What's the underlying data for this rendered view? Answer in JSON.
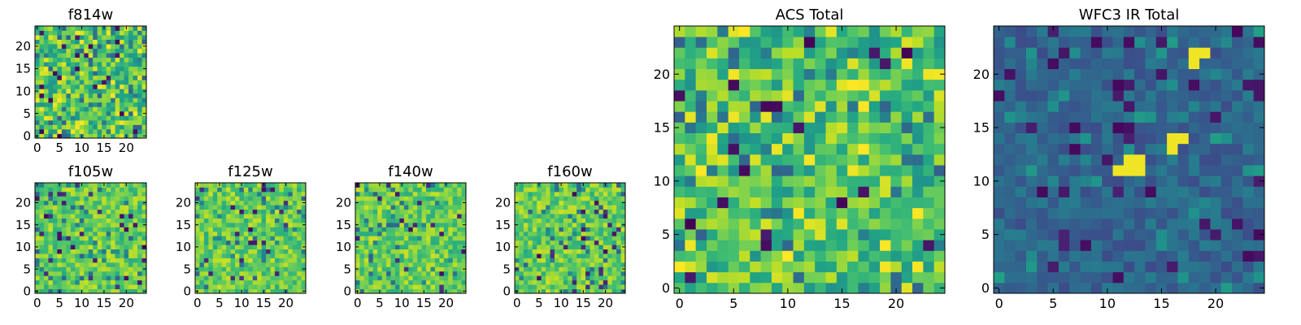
{
  "figure": {
    "description_panels": [
      "f814w",
      "f105w",
      "f125w",
      "f140w",
      "f160w",
      "ACS Total",
      "WFC3 IR Total"
    ]
  },
  "chart_data": [
    {
      "type": "heatmap",
      "title": "f814w",
      "xlabel": "",
      "ylabel": "",
      "xlim": [
        0,
        25
      ],
      "ylim": [
        0,
        25
      ],
      "xticks": [
        0,
        5,
        10,
        15,
        20
      ],
      "yticks": [
        0,
        5,
        10,
        15,
        20
      ],
      "grid": false,
      "colormap": "viridis",
      "size": 25,
      "seed": 814,
      "style": "acs"
    },
    {
      "type": "heatmap",
      "title": "f105w",
      "xlabel": "",
      "ylabel": "",
      "xlim": [
        0,
        25
      ],
      "ylim": [
        0,
        25
      ],
      "xticks": [
        0,
        5,
        10,
        15,
        20
      ],
      "yticks": [
        0,
        5,
        10,
        15,
        20
      ],
      "grid": false,
      "colormap": "viridis",
      "size": 25,
      "seed": 105,
      "style": "ir"
    },
    {
      "type": "heatmap",
      "title": "f125w",
      "xlabel": "",
      "ylabel": "",
      "xlim": [
        0,
        25
      ],
      "ylim": [
        0,
        25
      ],
      "xticks": [
        0,
        5,
        10,
        15,
        20
      ],
      "yticks": [
        0,
        5,
        10,
        15,
        20
      ],
      "grid": false,
      "colormap": "viridis",
      "size": 25,
      "seed": 125,
      "style": "ir"
    },
    {
      "type": "heatmap",
      "title": "f140w",
      "xlabel": "",
      "ylabel": "",
      "xlim": [
        0,
        25
      ],
      "ylim": [
        0,
        25
      ],
      "xticks": [
        0,
        5,
        10,
        15,
        20
      ],
      "yticks": [
        0,
        5,
        10,
        15,
        20
      ],
      "grid": false,
      "colormap": "viridis",
      "size": 25,
      "seed": 140,
      "style": "ir"
    },
    {
      "type": "heatmap",
      "title": "f160w",
      "xlabel": "",
      "ylabel": "",
      "xlim": [
        0,
        25
      ],
      "ylim": [
        0,
        25
      ],
      "xticks": [
        0,
        5,
        10,
        15,
        20
      ],
      "yticks": [
        0,
        5,
        10,
        15,
        20
      ],
      "grid": false,
      "colormap": "viridis",
      "size": 25,
      "seed": 160,
      "style": "ir"
    },
    {
      "type": "heatmap",
      "title": "ACS Total",
      "xlabel": "",
      "ylabel": "",
      "xlim": [
        0,
        25
      ],
      "ylim": [
        0,
        25
      ],
      "xticks": [
        0,
        5,
        10,
        15,
        20
      ],
      "yticks": [
        0,
        5,
        10,
        15,
        20
      ],
      "grid": false,
      "colormap": "viridis",
      "size": 25,
      "seed": 77,
      "style": "acs"
    },
    {
      "type": "heatmap",
      "title": "WFC3 IR Total",
      "xlabel": "",
      "ylabel": "",
      "xlim": [
        0,
        25
      ],
      "ylim": [
        0,
        25
      ],
      "xticks": [
        0,
        5,
        10,
        15,
        20
      ],
      "yticks": [
        0,
        5,
        10,
        15,
        20
      ],
      "grid": false,
      "colormap": "viridis",
      "size": 25,
      "seed": 3,
      "style": "wfc3",
      "bright_pixels": [
        [
          18,
          22
        ],
        [
          19,
          22
        ],
        [
          18,
          21
        ],
        [
          16,
          14
        ],
        [
          17,
          14
        ],
        [
          16,
          13
        ],
        [
          12,
          12
        ],
        [
          13,
          12
        ],
        [
          11,
          11
        ],
        [
          12,
          11
        ],
        [
          13,
          11
        ]
      ]
    }
  ],
  "colors": {
    "viridis_dark": "#440154",
    "viridis_mid": "#21918c",
    "viridis_bright": "#fde725",
    "axis": "#000000",
    "background": "#ffffff"
  }
}
